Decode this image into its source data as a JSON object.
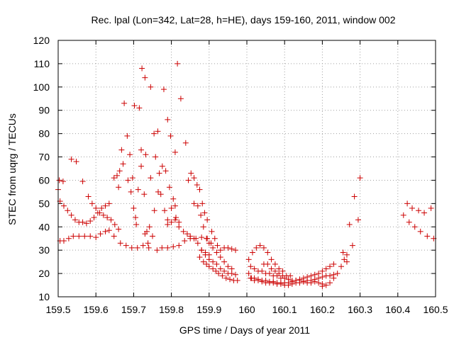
{
  "chart_data": {
    "type": "scatter",
    "title": "Rec. lpal (Lon=342, Lat=28, h=HE), days 159-160, 2011, window 002",
    "xlabel": "GPS time / Days of year 2011",
    "ylabel": "STEC from uqrg / TECUs",
    "xlim": [
      159.5,
      160.5
    ],
    "ylim": [
      10,
      120
    ],
    "xticks": [
      159.5,
      159.6,
      159.7,
      159.8,
      159.9,
      160,
      160.1,
      160.2,
      160.3,
      160.4,
      160.5
    ],
    "xtick_labels": [
      "159.5",
      "159.6",
      "159.7",
      "159.8",
      "159.9",
      "160",
      "160.1",
      "160.2",
      "160.3",
      "160.4",
      "160.5"
    ],
    "yticks": [
      10,
      20,
      30,
      40,
      50,
      60,
      70,
      80,
      90,
      100,
      110,
      120
    ],
    "ytick_labels": [
      "10",
      "20",
      "30",
      "40",
      "50",
      "60",
      "70",
      "80",
      "90",
      "100",
      "110",
      "120"
    ],
    "grid": true,
    "marker": "+",
    "color": "#cc0000",
    "series": [
      {
        "name": "STEC",
        "points": [
          [
            159.5,
            56
          ],
          [
            159.505,
            51
          ],
          [
            159.515,
            49
          ],
          [
            159.525,
            47
          ],
          [
            159.535,
            45
          ],
          [
            159.545,
            43
          ],
          [
            159.555,
            42
          ],
          [
            159.565,
            42
          ],
          [
            159.575,
            41.5
          ],
          [
            159.585,
            42.5
          ],
          [
            159.595,
            44
          ],
          [
            159.605,
            46
          ],
          [
            159.615,
            48
          ],
          [
            159.625,
            49
          ],
          [
            159.635,
            50
          ],
          [
            159.503,
            60
          ],
          [
            159.513,
            59.5
          ],
          [
            159.535,
            69
          ],
          [
            159.548,
            68
          ],
          [
            159.565,
            59.5
          ],
          [
            159.58,
            53
          ],
          [
            159.59,
            50
          ],
          [
            159.6,
            48
          ],
          [
            159.61,
            46
          ],
          [
            159.62,
            45
          ],
          [
            159.63,
            44
          ],
          [
            159.64,
            43
          ],
          [
            159.65,
            41
          ],
          [
            159.66,
            39
          ],
          [
            159.505,
            34
          ],
          [
            159.515,
            34
          ],
          [
            159.528,
            35
          ],
          [
            159.54,
            36
          ],
          [
            159.555,
            36
          ],
          [
            159.57,
            36
          ],
          [
            159.585,
            36
          ],
          [
            159.6,
            35.5
          ],
          [
            159.612,
            37
          ],
          [
            159.625,
            38
          ],
          [
            159.635,
            38.5
          ],
          [
            159.648,
            36
          ],
          [
            159.665,
            33
          ],
          [
            159.68,
            32
          ],
          [
            159.695,
            31
          ],
          [
            159.71,
            31
          ],
          [
            159.725,
            32
          ],
          [
            159.74,
            31
          ],
          [
            159.66,
            57
          ],
          [
            159.668,
            73
          ],
          [
            159.675,
            93
          ],
          [
            159.683,
            79
          ],
          [
            159.69,
            71
          ],
          [
            159.697,
            61
          ],
          [
            159.705,
            44
          ],
          [
            159.712,
            56
          ],
          [
            159.72,
            66
          ],
          [
            159.728,
            54
          ],
          [
            159.735,
            38
          ],
          [
            159.742,
            40
          ],
          [
            159.648,
            61
          ],
          [
            159.656,
            62
          ],
          [
            159.663,
            64
          ],
          [
            159.672,
            67
          ],
          [
            159.685,
            60
          ],
          [
            159.693,
            55
          ],
          [
            159.7,
            48
          ],
          [
            159.707,
            41
          ],
          [
            159.702,
            92
          ],
          [
            159.715,
            91
          ],
          [
            159.722,
            108
          ],
          [
            159.73,
            104
          ],
          [
            159.745,
            100
          ],
          [
            159.754,
            80
          ],
          [
            159.764,
            81
          ],
          [
            159.78,
            99
          ],
          [
            159.79,
            86
          ],
          [
            159.72,
            73
          ],
          [
            159.732,
            71
          ],
          [
            159.745,
            61
          ],
          [
            159.758,
            70
          ],
          [
            159.768,
            63
          ],
          [
            159.776,
            66
          ],
          [
            159.785,
            64
          ],
          [
            159.795,
            57
          ],
          [
            159.805,
            52
          ],
          [
            159.812,
            44
          ],
          [
            159.82,
            40
          ],
          [
            159.75,
            36
          ],
          [
            159.762,
            30
          ],
          [
            159.775,
            31
          ],
          [
            159.79,
            31
          ],
          [
            159.805,
            31.5
          ],
          [
            159.82,
            32
          ],
          [
            159.835,
            34
          ],
          [
            159.85,
            35
          ],
          [
            159.865,
            35
          ],
          [
            159.88,
            35.5
          ],
          [
            159.895,
            35
          ],
          [
            159.905,
            33
          ],
          [
            159.73,
            37
          ],
          [
            159.738,
            33
          ],
          [
            159.755,
            47
          ],
          [
            159.765,
            55
          ],
          [
            159.772,
            54
          ],
          [
            159.782,
            47
          ],
          [
            159.79,
            41
          ],
          [
            159.8,
            48
          ],
          [
            159.81,
            49
          ],
          [
            159.798,
            79
          ],
          [
            159.81,
            72
          ],
          [
            159.816,
            110
          ],
          [
            159.825,
            95
          ],
          [
            159.838,
            76
          ],
          [
            159.845,
            60
          ],
          [
            159.852,
            63
          ],
          [
            159.86,
            61
          ],
          [
            159.868,
            58
          ],
          [
            159.875,
            56
          ],
          [
            159.882,
            50
          ],
          [
            159.888,
            46
          ],
          [
            159.895,
            43
          ],
          [
            159.79,
            43
          ],
          [
            159.8,
            42
          ],
          [
            159.81,
            43
          ],
          [
            159.82,
            42
          ],
          [
            159.832,
            38
          ],
          [
            159.842,
            37
          ],
          [
            159.85,
            36
          ],
          [
            159.86,
            35
          ],
          [
            159.87,
            33
          ],
          [
            159.88,
            30
          ],
          [
            159.89,
            29
          ],
          [
            159.9,
            28
          ],
          [
            159.86,
            50
          ],
          [
            159.87,
            49
          ],
          [
            159.878,
            45
          ],
          [
            159.885,
            40
          ],
          [
            159.893,
            35
          ],
          [
            159.9,
            33
          ],
          [
            159.907,
            38
          ],
          [
            159.915,
            35
          ],
          [
            159.922,
            32
          ],
          [
            159.93,
            30
          ],
          [
            159.94,
            31
          ],
          [
            159.95,
            31
          ],
          [
            159.96,
            30.5
          ],
          [
            159.97,
            30
          ],
          [
            159.875,
            27
          ],
          [
            159.885,
            25
          ],
          [
            159.893,
            24
          ],
          [
            159.9,
            23
          ],
          [
            159.91,
            22
          ],
          [
            159.918,
            21
          ],
          [
            159.925,
            20
          ],
          [
            159.935,
            19
          ],
          [
            159.945,
            18
          ],
          [
            159.955,
            17.5
          ],
          [
            159.965,
            17
          ],
          [
            159.975,
            17
          ],
          [
            159.88,
            30
          ],
          [
            159.89,
            28
          ],
          [
            159.9,
            26
          ],
          [
            159.91,
            25
          ],
          [
            159.92,
            24
          ],
          [
            159.93,
            22
          ],
          [
            159.94,
            21
          ],
          [
            159.95,
            20
          ],
          [
            159.96,
            20
          ],
          [
            159.97,
            19.5
          ],
          [
            159.91,
            31
          ],
          [
            159.92,
            29
          ],
          [
            159.93,
            27
          ],
          [
            159.94,
            25
          ],
          [
            159.95,
            23
          ],
          [
            159.96,
            22
          ],
          [
            160.005,
            20
          ],
          [
            160.012,
            18
          ],
          [
            160.02,
            17
          ],
          [
            160.03,
            17
          ],
          [
            160.04,
            16.5
          ],
          [
            160.05,
            16
          ],
          [
            160.06,
            16
          ],
          [
            160.07,
            16
          ],
          [
            160.08,
            15.5
          ],
          [
            160.09,
            15.5
          ],
          [
            160.1,
            15
          ],
          [
            160.11,
            15
          ],
          [
            160.12,
            15.5
          ],
          [
            160.13,
            16
          ],
          [
            160.14,
            16
          ],
          [
            160.15,
            16.5
          ],
          [
            160.16,
            17
          ],
          [
            160.17,
            17
          ],
          [
            160.18,
            17.5
          ],
          [
            160.19,
            18
          ],
          [
            160.2,
            18.5
          ],
          [
            160.21,
            19
          ],
          [
            160.22,
            19
          ],
          [
            160.23,
            19.5
          ],
          [
            160.005,
            26
          ],
          [
            160.015,
            29
          ],
          [
            160.025,
            31
          ],
          [
            160.035,
            32
          ],
          [
            160.045,
            31
          ],
          [
            160.055,
            29
          ],
          [
            160.065,
            26
          ],
          [
            160.075,
            24
          ],
          [
            160.085,
            22
          ],
          [
            160.095,
            21
          ],
          [
            160.01,
            23
          ],
          [
            160.02,
            22
          ],
          [
            160.03,
            21
          ],
          [
            160.04,
            21
          ],
          [
            160.05,
            20
          ],
          [
            160.06,
            20
          ],
          [
            160.07,
            19
          ],
          [
            160.08,
            19
          ],
          [
            160.09,
            18
          ],
          [
            160.1,
            18
          ],
          [
            160.11,
            17.5
          ],
          [
            160.12,
            17
          ],
          [
            160.13,
            17
          ],
          [
            160.14,
            17
          ],
          [
            160.15,
            16.5
          ],
          [
            160.16,
            16
          ],
          [
            160.17,
            16
          ],
          [
            160.18,
            16.5
          ],
          [
            160.19,
            16
          ],
          [
            160.2,
            15.5
          ],
          [
            160.01,
            18
          ],
          [
            160.02,
            18
          ],
          [
            160.03,
            17.5
          ],
          [
            160.04,
            17
          ],
          [
            160.05,
            17
          ],
          [
            160.06,
            16.5
          ],
          [
            160.07,
            16.5
          ],
          [
            160.08,
            16
          ],
          [
            160.09,
            16
          ],
          [
            160.1,
            16
          ],
          [
            160.11,
            16
          ],
          [
            160.12,
            16.5
          ],
          [
            160.13,
            17
          ],
          [
            160.14,
            17.5
          ],
          [
            160.15,
            18
          ],
          [
            160.16,
            18.5
          ],
          [
            160.17,
            19
          ],
          [
            160.18,
            19.5
          ],
          [
            160.19,
            20
          ],
          [
            160.2,
            21
          ],
          [
            160.21,
            22
          ],
          [
            160.22,
            23
          ],
          [
            160.23,
            24
          ],
          [
            160.045,
            24
          ],
          [
            160.055,
            24
          ],
          [
            160.065,
            22
          ],
          [
            160.075,
            21
          ],
          [
            160.085,
            20
          ],
          [
            160.095,
            19
          ],
          [
            160.105,
            19
          ],
          [
            160.115,
            19
          ],
          [
            160.2,
            14.5
          ],
          [
            160.21,
            15
          ],
          [
            160.22,
            16
          ],
          [
            160.23,
            18
          ],
          [
            160.24,
            20
          ],
          [
            160.25,
            23
          ],
          [
            160.258,
            26
          ],
          [
            160.265,
            28
          ],
          [
            160.255,
            29
          ],
          [
            160.265,
            25
          ],
          [
            160.272,
            41
          ],
          [
            160.28,
            32
          ],
          [
            160.285,
            53
          ],
          [
            160.295,
            43
          ],
          [
            160.3,
            61
          ],
          [
            160.415,
            45
          ],
          [
            160.425,
            50
          ],
          [
            160.43,
            42
          ],
          [
            160.438,
            48
          ],
          [
            160.445,
            40
          ],
          [
            160.455,
            47
          ],
          [
            160.46,
            38
          ],
          [
            160.47,
            46
          ],
          [
            160.478,
            36
          ],
          [
            160.488,
            48
          ],
          [
            160.495,
            35
          ]
        ]
      }
    ]
  }
}
